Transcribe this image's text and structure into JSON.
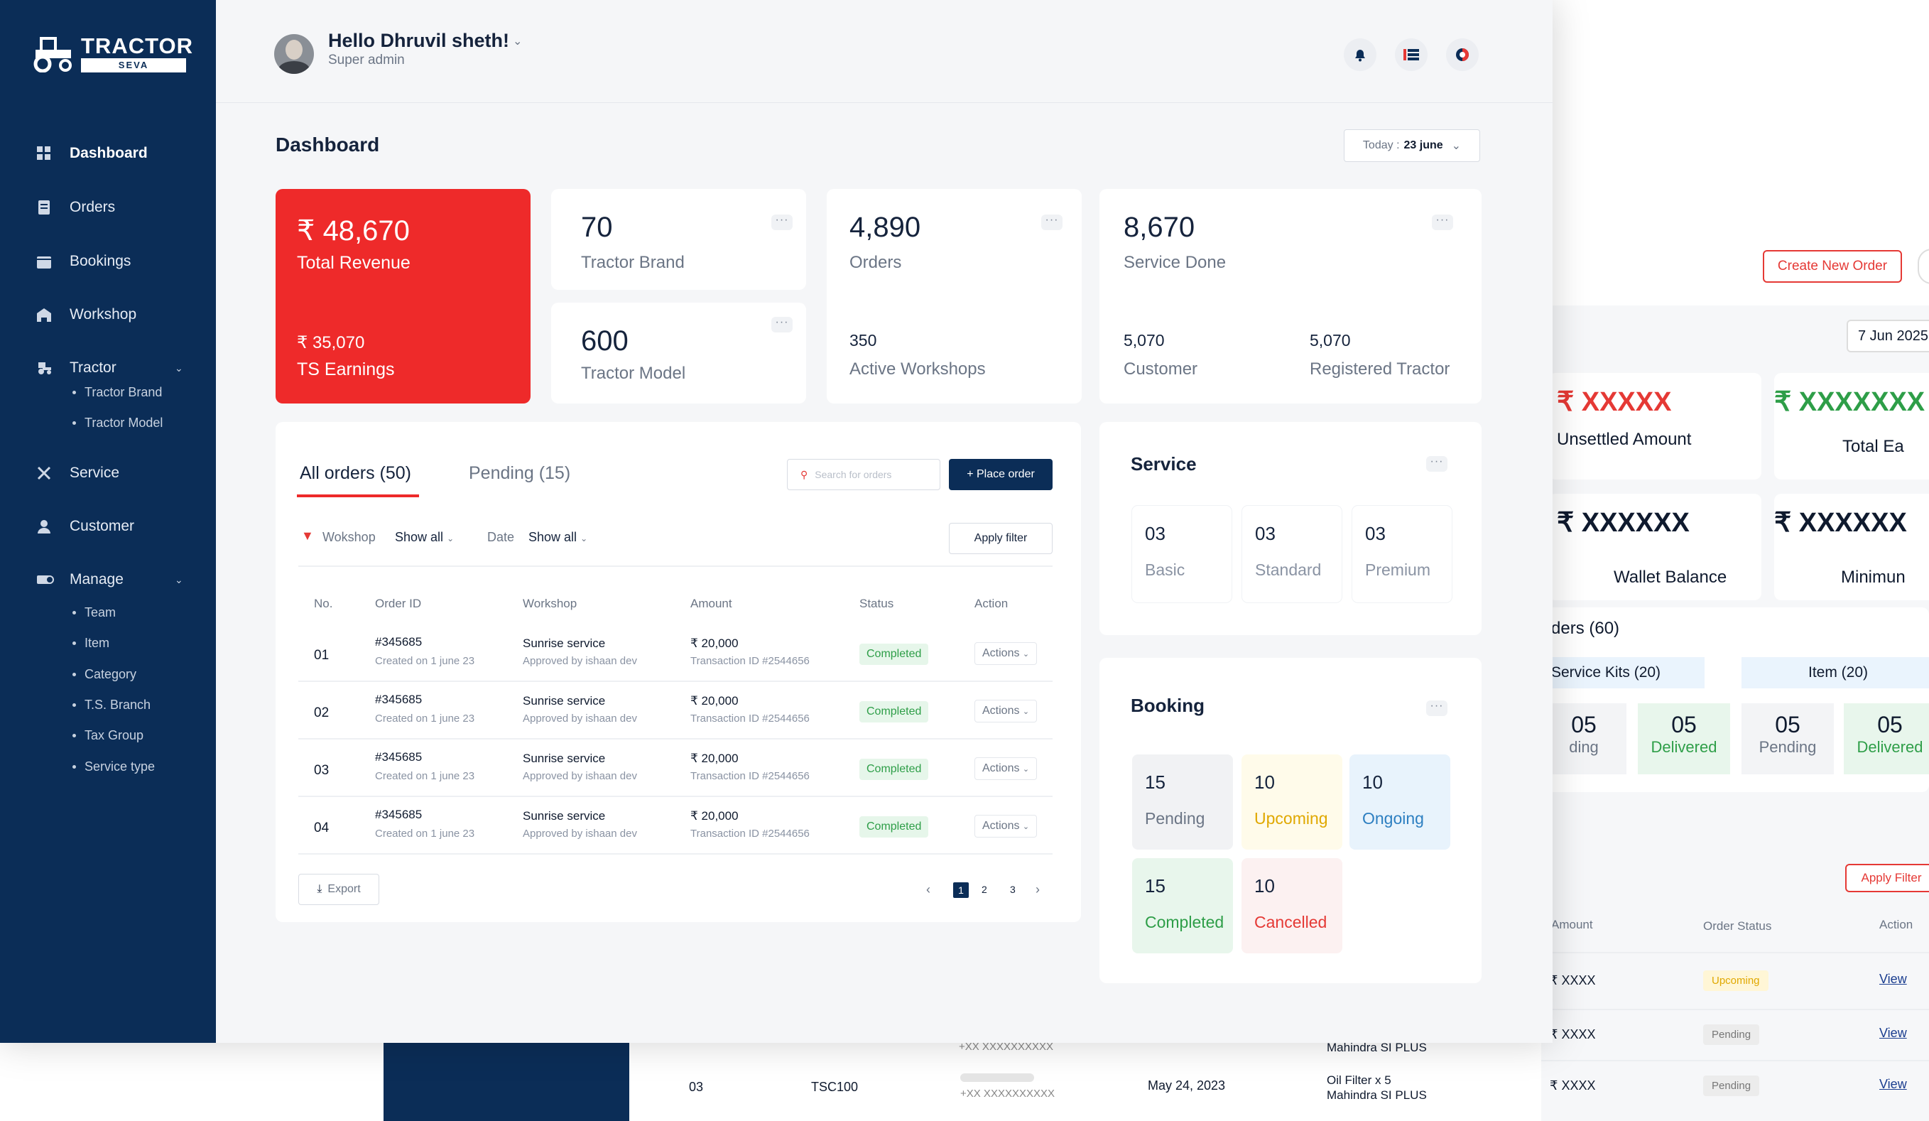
{
  "app": {
    "brand_top": "TRACTOR",
    "brand_bottom": "SEVA"
  },
  "sidebar": {
    "items": [
      {
        "label": "Dashboard",
        "icon": "grid-icon"
      },
      {
        "label": "Orders",
        "icon": "orders-icon"
      },
      {
        "label": "Bookings",
        "icon": "calendar-icon"
      },
      {
        "label": "Workshop",
        "icon": "workshop-icon"
      },
      {
        "label": "Tractor",
        "icon": "tractor-icon"
      },
      {
        "label": "Service",
        "icon": "wrench-icon"
      },
      {
        "label": "Customer",
        "icon": "user-icon"
      },
      {
        "label": "Manage",
        "icon": "manage-icon"
      }
    ],
    "tractor_sub": [
      "Tractor Brand",
      "Tractor Model"
    ],
    "manage_sub": [
      "Team",
      "Item",
      "Category",
      "T.S. Branch",
      "Tax Group",
      "Service type"
    ]
  },
  "header": {
    "greeting": "Hello Dhruvil sheth!",
    "role": "Super admin",
    "icons": [
      "bell-icon",
      "list-icon",
      "theme-icon"
    ]
  },
  "page": {
    "title": "Dashboard",
    "date_prefix": "Today :",
    "date_value": "23 june"
  },
  "stats": {
    "revenue": {
      "value": "₹ 48,670",
      "label": "Total Revenue",
      "sub_value": "₹ 35,070",
      "sub_label": "TS Earnings"
    },
    "brand": {
      "value": "70",
      "label": "Tractor Brand"
    },
    "model": {
      "value": "600",
      "label": "Tractor Model"
    },
    "orders": {
      "value": "4,890",
      "label": "Orders",
      "sub_value": "350",
      "sub_label": "Active Workshops"
    },
    "service": {
      "value": "8,670",
      "label": "Service Done",
      "c_value": "5,070",
      "c_label": "Customer",
      "r_value": "5,070",
      "r_label": "Registered Tractor"
    }
  },
  "orders": {
    "tab_all": "All orders (50)",
    "tab_pending": "Pending (15)",
    "search_placeholder": "Search for orders",
    "place_order": "+ Place order",
    "filter_workshop": "Wokshop",
    "filter_workshop_value": "Show all",
    "filter_date": "Date",
    "filter_date_value": "Show all",
    "apply_filter": "Apply filter",
    "columns": [
      "No.",
      "Order ID",
      "Workshop",
      "Amount",
      "Status",
      "Action"
    ],
    "rows": [
      {
        "no": "01",
        "id": "#345685",
        "created": "Created on 1 june 23",
        "workshop": "Sunrise service",
        "approved": "Approved by ishaan dev",
        "amount": "₹ 20,000",
        "txn": "Transaction ID #2544656",
        "status": "Completed",
        "action": "Actions"
      },
      {
        "no": "02",
        "id": "#345685",
        "created": "Created on 1 june 23",
        "workshop": "Sunrise service",
        "approved": "Approved by ishaan dev",
        "amount": "₹ 20,000",
        "txn": "Transaction ID #2544656",
        "status": "Completed",
        "action": "Actions"
      },
      {
        "no": "03",
        "id": "#345685",
        "created": "Created on 1 june 23",
        "workshop": "Sunrise service",
        "approved": "Approved by ishaan dev",
        "amount": "₹ 20,000",
        "txn": "Transaction ID #2544656",
        "status": "Completed",
        "action": "Actions"
      },
      {
        "no": "04",
        "id": "#345685",
        "created": "Created on 1 june 23",
        "workshop": "Sunrise service",
        "approved": "Approved by ishaan dev",
        "amount": "₹ 20,000",
        "txn": "Transaction ID #2544656",
        "status": "Completed",
        "action": "Actions"
      }
    ],
    "export": "Export",
    "pages": [
      "1",
      "2",
      "3"
    ]
  },
  "service": {
    "title": "Service",
    "tiles": [
      {
        "n": "03",
        "t": "Basic"
      },
      {
        "n": "03",
        "t": "Standard"
      },
      {
        "n": "03",
        "t": "Premium"
      }
    ]
  },
  "booking": {
    "title": "Booking",
    "tiles": [
      {
        "n": "15",
        "t": "Pending",
        "bg": "#f1f2f4",
        "fg": "#6b7585"
      },
      {
        "n": "10",
        "t": "Upcoming",
        "bg": "#fffbea",
        "fg": "#e0a800"
      },
      {
        "n": "10",
        "t": "Ongoing",
        "bg": "#e8f3fc",
        "fg": "#2d7fc1"
      },
      {
        "n": "15",
        "t": "Completed",
        "bg": "#e8f6ec",
        "fg": "#2e9e48"
      },
      {
        "n": "10",
        "t": "Cancelled",
        "bg": "#fcf1f1",
        "fg": "#e53935"
      }
    ]
  },
  "background": {
    "create_order": "Create New Order",
    "date": "7 Jun 2025",
    "unsettled_value": "₹ XXXXX",
    "unsettled_label": "Unsettled Amount",
    "total_value": "₹ XXXXXXX",
    "total_label": "Total Ea",
    "wallet_value": "₹ XXXXXX",
    "wallet_label": "Wallet Balance",
    "min_value": "₹ XXXXXX",
    "min_label": "Minimun",
    "orders_label": "ders (60)",
    "kits": "Service Kits (20)",
    "item": "Item (20)",
    "k1n": "05",
    "k1t": "ding",
    "k2n": "05",
    "k2t": "Delivered",
    "i1n": "05",
    "i1t": "Pending",
    "i2n": "05",
    "i2t": "Delivered",
    "apply": "Apply Filter",
    "col_amount": "Amount",
    "col_status": "Order Status",
    "col_action": "Action",
    "r1_amt": "₹ XXXX",
    "r1_status": "Upcoming",
    "r1_view": "View",
    "r2_amt": "₹ XXXX",
    "r2_status": "Pending",
    "r2_view": "View",
    "r3_no": "03",
    "r3_id": "TSC100",
    "r3_phone": "+XX XXXXXXXXXX",
    "r3_date": "May 24, 2023",
    "r3_item": "Oil Filter x 5",
    "r3_model": "Mahindra SI PLUS",
    "r3_amt": "₹ XXXX",
    "r3_status": "Pending",
    "r3_view": "View",
    "r2_phone": "+XX XXXXXXXXXX",
    "r2_model": "Mahindra SI PLUS"
  },
  "colors": {
    "brand_red": "#ee2a2a",
    "navy": "#0b2d57",
    "green": "#2e9e48"
  }
}
